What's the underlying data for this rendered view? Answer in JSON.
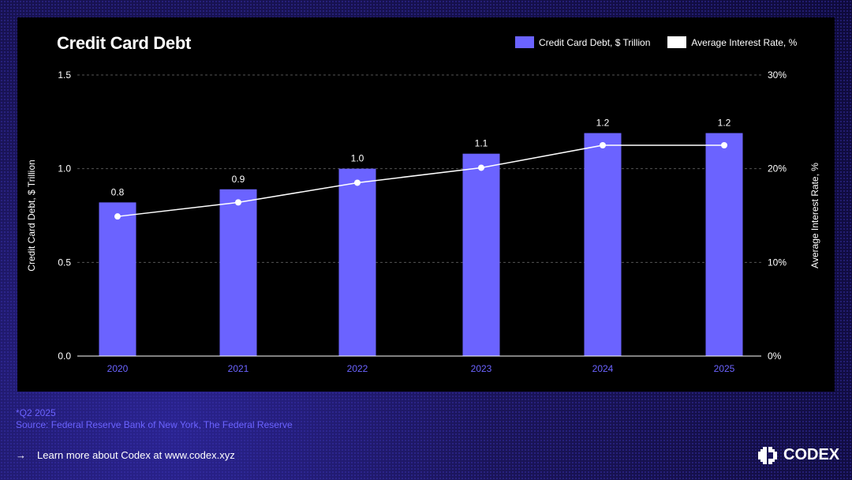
{
  "title": "Credit Card Debt",
  "legend": {
    "debt_label": "Credit Card Debt, $ Trillion",
    "rate_label": "Average Interest Rate, %"
  },
  "colors": {
    "bar": "#6b63ff",
    "line": "#ffffff",
    "accent": "#6b63ff"
  },
  "chart_data": {
    "type": "bar",
    "title": "Credit Card Debt",
    "categories": [
      "2020",
      "2021",
      "2022",
      "2023",
      "2024",
      "2025"
    ],
    "series": [
      {
        "name": "Credit Card Debt, $ Trillion",
        "type": "bar",
        "axis": "left",
        "values": [
          0.82,
          0.89,
          1.0,
          1.08,
          1.19,
          1.19
        ]
      },
      {
        "name": "Average Interest Rate, %",
        "type": "line",
        "axis": "right",
        "values": [
          14.9,
          16.4,
          18.5,
          20.1,
          22.5,
          22.5
        ]
      }
    ],
    "data_labels": [
      "0.8",
      "0.9",
      "1.0",
      "1.1",
      "1.2",
      "1.2"
    ],
    "ylabel": "Credit Card Debt, $ Trillion",
    "y2label": "Average Interest Rate, %",
    "ylim": [
      0,
      1.5
    ],
    "y2lim": [
      0,
      30
    ],
    "yticks": [
      "0.0",
      "0.5",
      "1.0",
      "1.5"
    ],
    "y2ticks": [
      "0%",
      "10%",
      "20%",
      "30%"
    ],
    "grid": true,
    "legend_position": "top-right"
  },
  "footnote": {
    "note": "*Q2 2025",
    "source": "Source: Federal Reserve Bank of New York, The Federal Reserve"
  },
  "footer": {
    "arrow": "→",
    "learn_more": "Learn more about Codex at www.codex.xyz"
  },
  "logo": {
    "text": "CODEX"
  }
}
